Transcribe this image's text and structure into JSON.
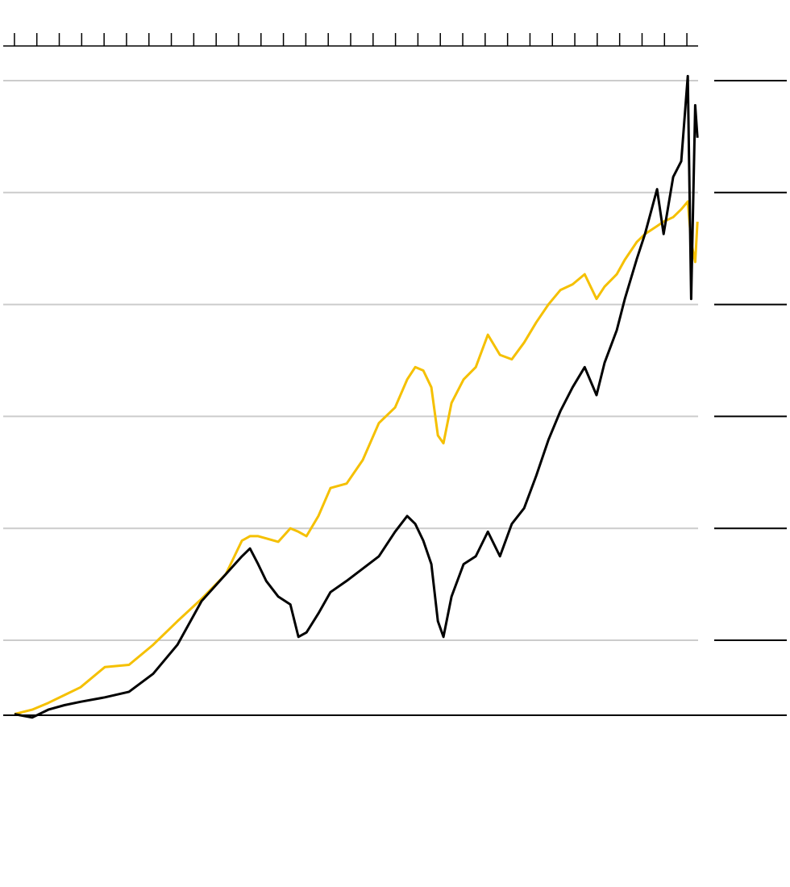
{
  "chart_data": {
    "type": "line",
    "x": [
      0.0,
      0.79,
      1.51,
      2.23,
      2.95,
      4.03,
      5.11,
      6.19,
      7.27,
      8.35,
      9.43,
      10.15,
      10.51,
      10.87,
      11.23,
      11.77,
      12.31,
      12.67,
      13.03,
      13.56,
      14.1,
      14.82,
      15.54,
      16.26,
      16.98,
      17.52,
      17.88,
      18.24,
      18.6,
      18.89,
      19.14,
      19.5,
      20.04,
      20.58,
      21.12,
      21.66,
      22.19,
      22.74,
      23.28,
      23.82,
      24.36,
      24.9,
      25.44,
      25.97,
      26.33,
      26.87,
      27.23,
      27.77,
      28.13,
      28.67,
      28.96,
      29.39,
      29.75,
      30.04,
      30.19,
      30.37,
      30.47
    ],
    "series": [
      {
        "color": "#f5c000",
        "values": [
          0.34,
          0.38,
          0.44,
          0.51,
          0.58,
          0.76,
          0.78,
          0.96,
          1.17,
          1.37,
          1.59,
          1.89,
          1.93,
          1.93,
          1.91,
          1.88,
          2.0,
          1.97,
          1.93,
          2.11,
          2.36,
          2.4,
          2.61,
          2.94,
          3.08,
          3.33,
          3.44,
          3.41,
          3.26,
          2.83,
          2.76,
          3.12,
          3.33,
          3.44,
          3.73,
          3.55,
          3.51,
          3.66,
          3.84,
          4.0,
          4.13,
          4.18,
          4.27,
          4.05,
          4.16,
          4.27,
          4.4,
          4.56,
          4.63,
          4.7,
          4.74,
          4.78,
          4.85,
          4.92,
          4.56,
          4.38,
          4.74
        ]
      },
      {
        "color": "#000000",
        "values": [
          0.34,
          0.31,
          0.38,
          0.42,
          0.45,
          0.49,
          0.54,
          0.7,
          0.96,
          1.35,
          1.59,
          1.75,
          1.82,
          1.68,
          1.53,
          1.39,
          1.32,
          1.03,
          1.07,
          1.24,
          1.43,
          1.53,
          1.64,
          1.75,
          1.97,
          2.11,
          2.04,
          1.89,
          1.68,
          1.17,
          1.03,
          1.39,
          1.68,
          1.75,
          1.97,
          1.75,
          2.04,
          2.18,
          2.47,
          2.79,
          3.05,
          3.26,
          3.44,
          3.19,
          3.48,
          3.77,
          4.05,
          4.41,
          4.63,
          5.03,
          4.63,
          5.14,
          5.28,
          6.04,
          4.05,
          5.78,
          5.49
        ]
      }
    ],
    "xlim": [
      -0.5,
      30.5
    ],
    "xticks": [
      0,
      1,
      2,
      3,
      4,
      5,
      6,
      7,
      8,
      9,
      10,
      11,
      12,
      13,
      14,
      15,
      16,
      17,
      18,
      19,
      20,
      21,
      22,
      23,
      24,
      25,
      26,
      27,
      28,
      29,
      30
    ],
    "ylim": [
      0.33,
      6
    ],
    "yticks": [
      1,
      2,
      3,
      4,
      5,
      6
    ],
    "grid": true
  }
}
